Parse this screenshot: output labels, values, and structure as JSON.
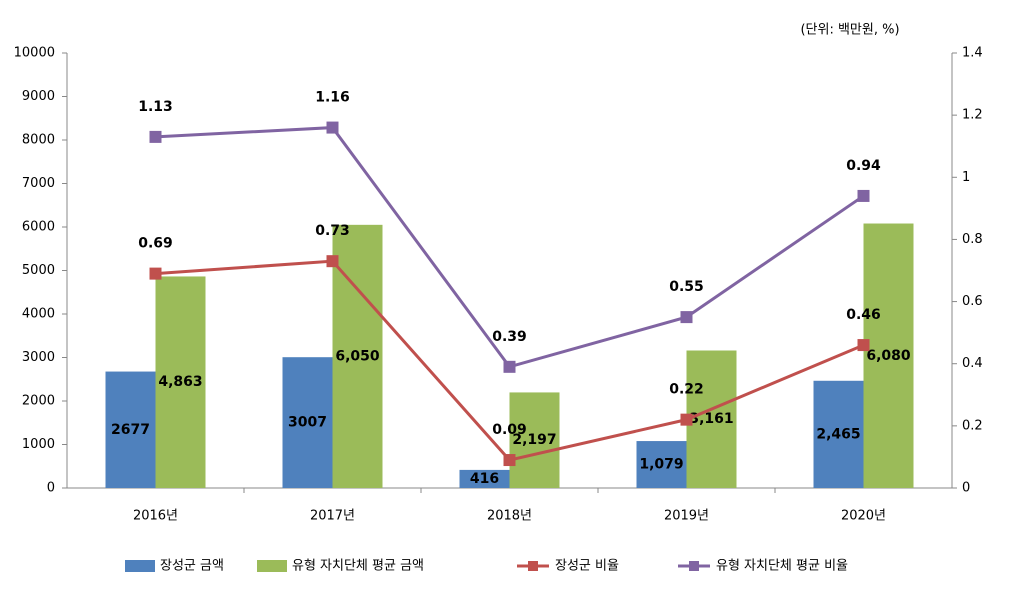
{
  "chart_data": {
    "type": "combo",
    "unit_note": "(단위: 백만원, %)",
    "categories": [
      "2016년",
      "2017년",
      "2018년",
      "2019년",
      "2020년"
    ],
    "series": [
      {
        "name": "장성군 금액",
        "type": "bar",
        "color": "#4f81bd",
        "values": [
          2677,
          3007,
          416,
          1079,
          2465
        ],
        "value_labels": [
          "2677",
          "3007",
          "416",
          "1,079",
          "2,465"
        ]
      },
      {
        "name": "유형 자치단체 평균 금액",
        "type": "bar",
        "color": "#9bbb59",
        "values": [
          4863,
          6050,
          2197,
          3161,
          6080
        ],
        "value_labels": [
          "4,863",
          "6,050",
          "2,197",
          "3,161",
          "6,080"
        ]
      },
      {
        "name": "장성군 비율",
        "type": "line",
        "axis": "y2",
        "color": "#c0504d",
        "values": [
          0.69,
          0.73,
          0.09,
          0.22,
          0.46
        ]
      },
      {
        "name": "유형 자치단체 평균 비율",
        "type": "line",
        "axis": "y2",
        "color": "#8064a2",
        "values": [
          1.13,
          1.16,
          0.39,
          0.55,
          0.94
        ]
      }
    ],
    "ylim": [
      0,
      10000
    ],
    "yticks": [
      0,
      1000,
      2000,
      3000,
      4000,
      5000,
      6000,
      7000,
      8000,
      9000,
      10000
    ],
    "y2lim": [
      0,
      1.4
    ],
    "y2ticks": [
      0,
      0.2,
      0.4,
      0.6,
      0.8,
      1,
      1.2,
      1.4
    ],
    "legend": "bottom",
    "grid": false
  }
}
